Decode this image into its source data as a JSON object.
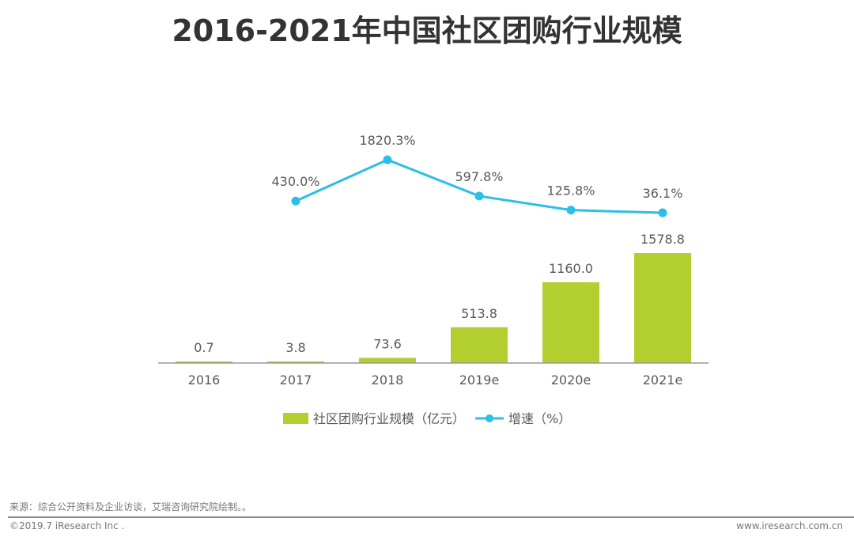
{
  "title": "2016-2021年中国社区团购行业规模",
  "chart_data": {
    "type": "bar+line",
    "categories": [
      "2016",
      "2017",
      "2018",
      "2019e",
      "2020e",
      "2021e"
    ],
    "series": [
      {
        "name": "社区团购行业规模（亿元）",
        "type": "bar",
        "color": "#b3cf2f",
        "values": [
          0.7,
          3.8,
          73.6,
          513.8,
          1160.0,
          1578.8
        ],
        "labels": [
          "0.7",
          "3.8",
          "73.6",
          "513.8",
          "1160.0",
          "1578.8"
        ]
      },
      {
        "name": "增速（%）",
        "type": "line",
        "color": "#2bbfe8",
        "values": [
          null,
          430.0,
          1820.3,
          597.8,
          125.8,
          36.1
        ],
        "labels": [
          "",
          "430.0%",
          "1820.3%",
          "597.8%",
          "125.8%",
          "36.1%"
        ]
      }
    ],
    "legend_position": "bottom",
    "grid": false
  },
  "footer": {
    "source": "来源：综合公开资料及企业访谈，艾瑞咨询研究院绘制。。",
    "copyright": "©2019.7 iResearch Inc .",
    "website": "www.iresearch.com.cn"
  }
}
